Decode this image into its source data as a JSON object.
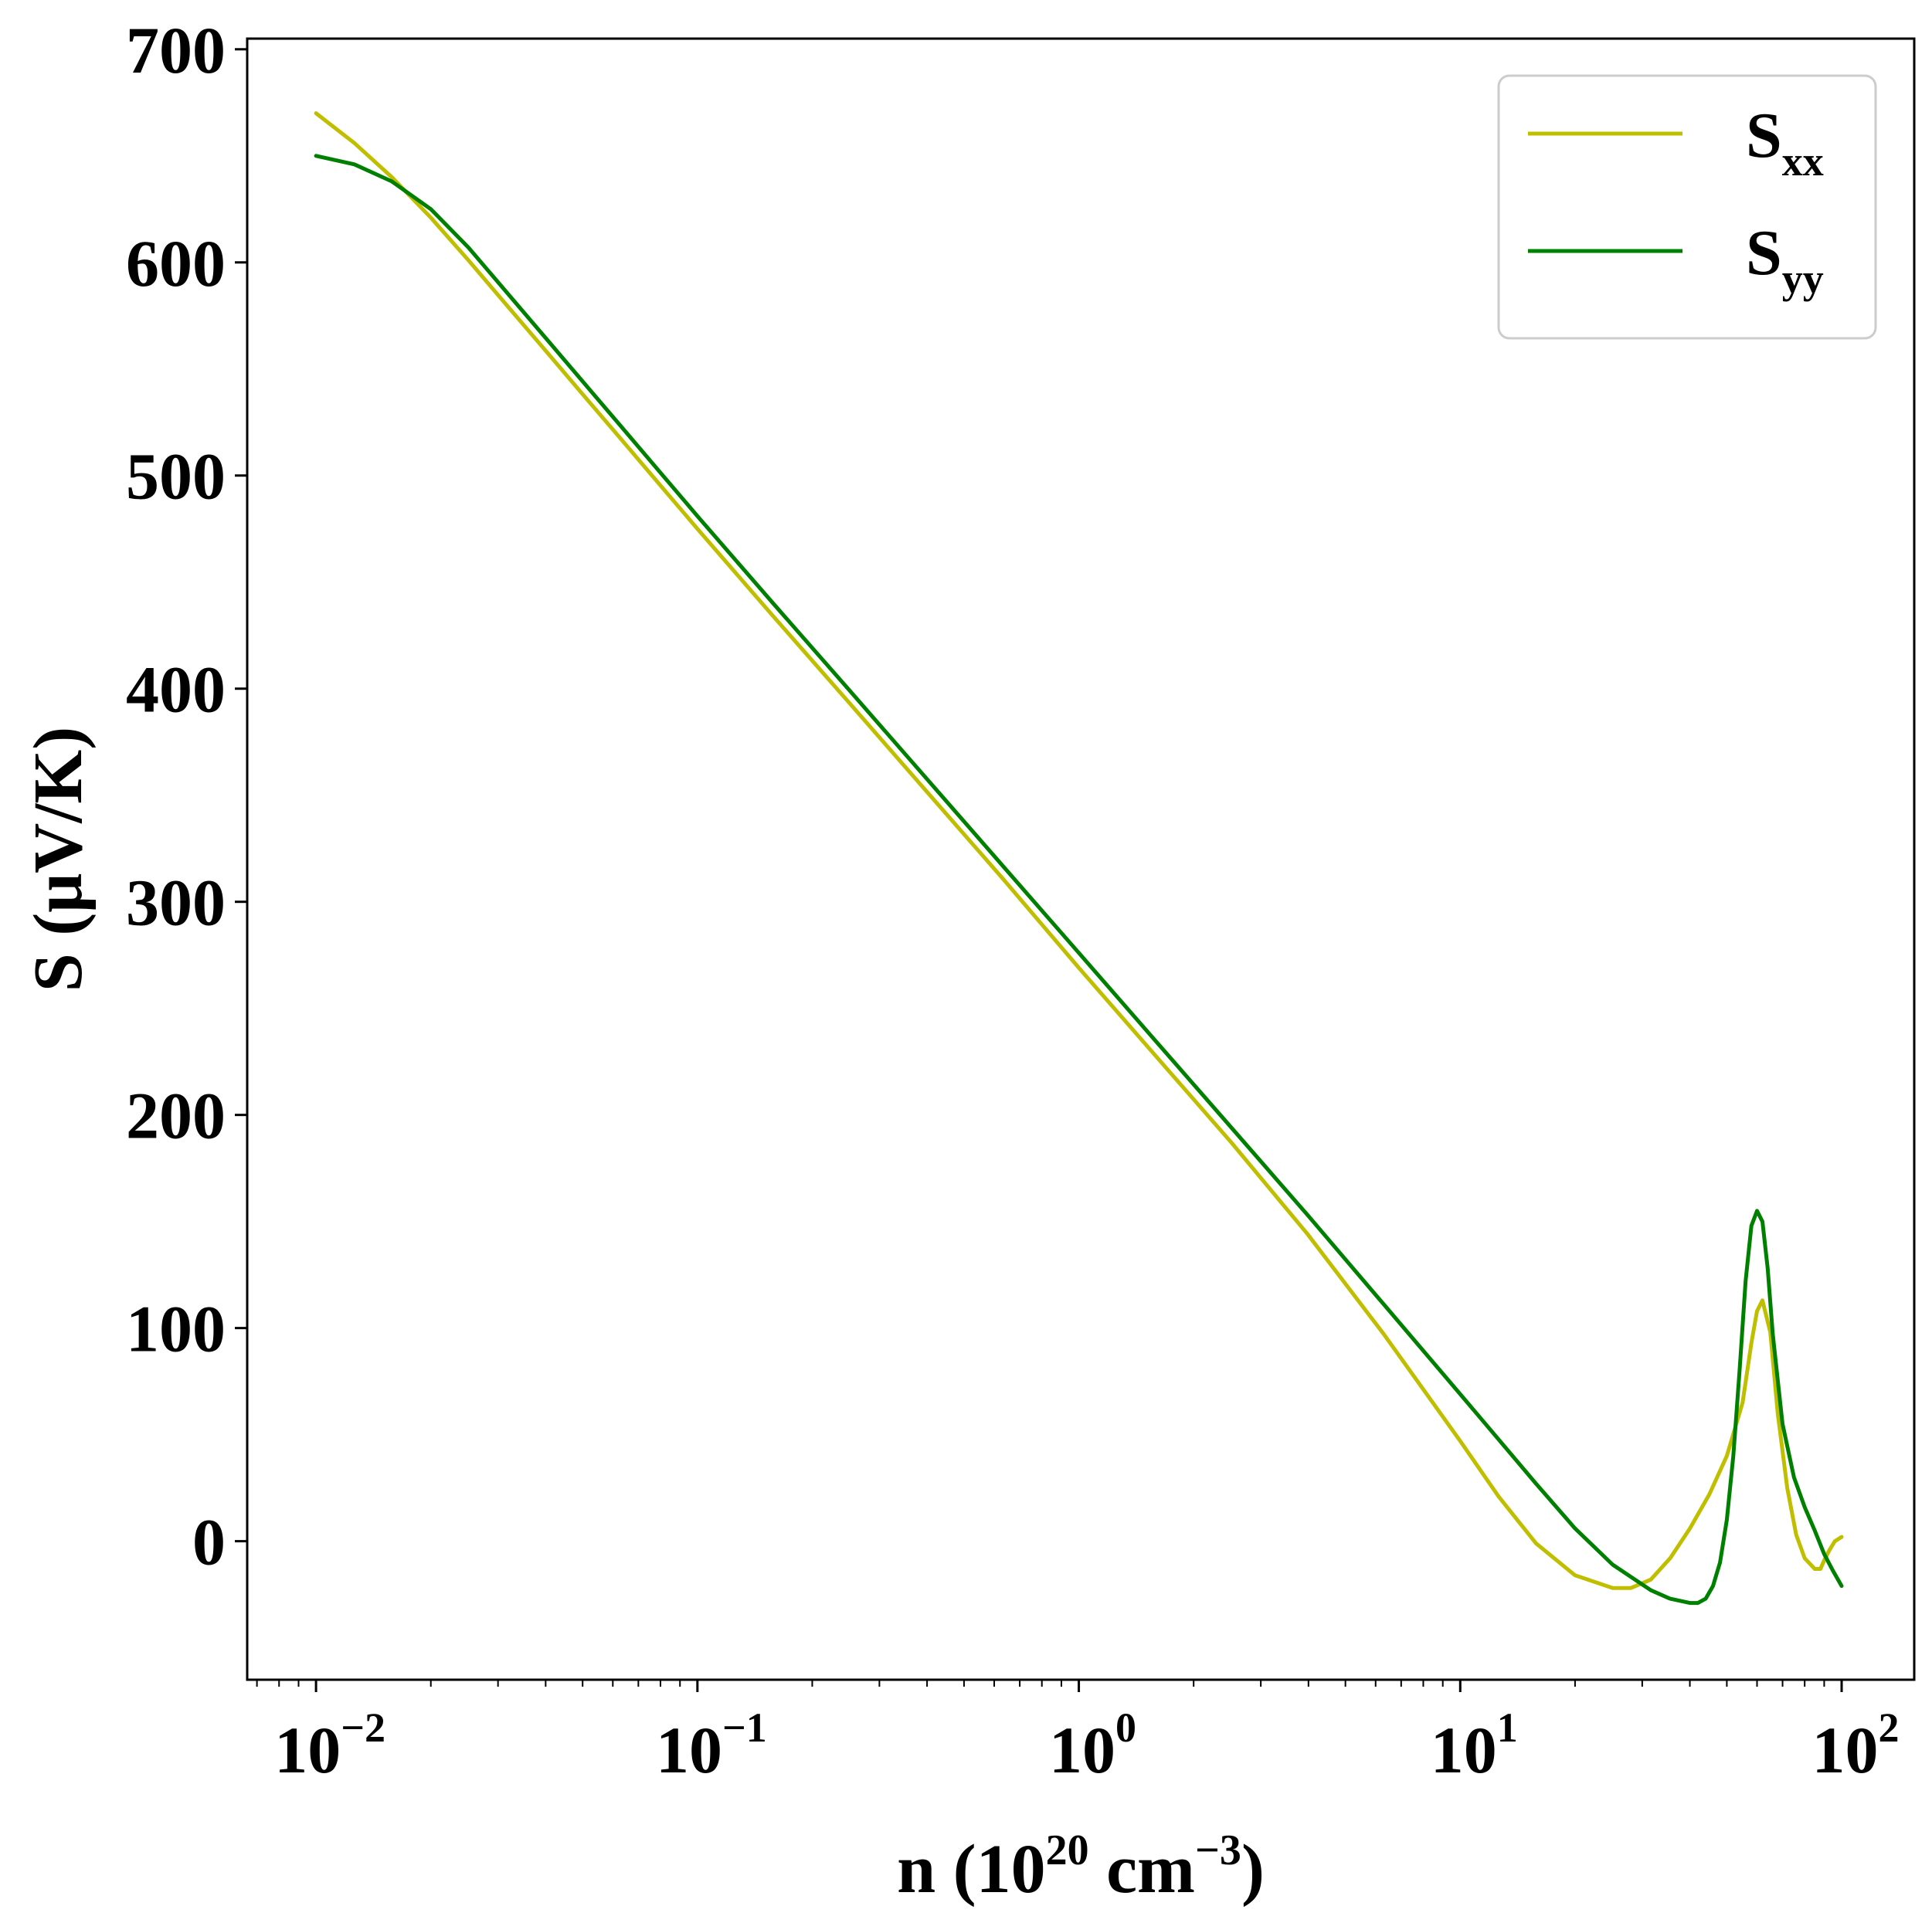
{
  "chart_data": {
    "type": "line",
    "xscale": "log",
    "xlim": [
      0.0066,
      155
    ],
    "ylim": [
      -65,
      705
    ],
    "xlabel": {
      "prefix": "n (10",
      "sup1": "20",
      "middle": " cm",
      "sup2": "−3",
      "suffix": ")"
    },
    "ylabel": "S (μV/K)",
    "grid": false,
    "legend": {
      "position": "top-right"
    },
    "x_ticks": [
      {
        "value": 0.01,
        "base": "10",
        "exp": "−2"
      },
      {
        "value": 0.1,
        "base": "10",
        "exp": "−1"
      },
      {
        "value": 1,
        "base": "10",
        "exp": "0"
      },
      {
        "value": 10,
        "base": "10",
        "exp": "1"
      },
      {
        "value": 100,
        "base": "10",
        "exp": "2"
      }
    ],
    "y_ticks": [
      {
        "value": 0,
        "label": "0"
      },
      {
        "value": 100,
        "label": "100"
      },
      {
        "value": 200,
        "label": "200"
      },
      {
        "value": 300,
        "label": "300"
      },
      {
        "value": 400,
        "label": "400"
      },
      {
        "value": 500,
        "label": "500"
      },
      {
        "value": 600,
        "label": "600"
      },
      {
        "value": 700,
        "label": "700"
      }
    ],
    "series": [
      {
        "name": "S",
        "name_sub": "xx",
        "color": "#bfbf00",
        "x": [
          0.01,
          0.0126,
          0.0158,
          0.02,
          0.0251,
          0.0316,
          0.0398,
          0.0501,
          0.0631,
          0.0794,
          0.1,
          0.158,
          0.251,
          0.398,
          0.631,
          1,
          1.585,
          2.512,
          3.981,
          6.31,
          10,
          12.6,
          15.8,
          20,
          25.1,
          28,
          31.6,
          35.5,
          40,
          45,
          50,
          55,
          58,
          60,
          62,
          65,
          68,
          72,
          76,
          80,
          85,
          88,
          90,
          93,
          96,
          100
        ],
        "y": [
          670,
          656,
          640,
          621,
          601,
          580,
          559,
          538,
          517,
          496,
          475,
          434,
          393,
          352,
          311,
          269,
          228,
          187,
          144,
          97,
          47,
          21,
          -1,
          -16,
          -22,
          -22,
          -18,
          -8,
          6,
          22,
          40,
          65,
          93,
          108,
          113,
          98,
          60,
          25,
          3,
          -8,
          -13,
          -13,
          -9,
          -4,
          0,
          2
        ]
      },
      {
        "name": "S",
        "name_sub": "yy",
        "color": "#008000",
        "x": [
          0.01,
          0.0126,
          0.0158,
          0.02,
          0.0251,
          0.0316,
          0.0398,
          0.0501,
          0.0631,
          0.0794,
          0.1,
          0.158,
          0.251,
          0.398,
          0.631,
          1,
          1.585,
          2.512,
          3.981,
          6.31,
          10,
          15.8,
          20,
          25.1,
          31.6,
          35.5,
          40,
          42,
          44,
          46,
          48,
          50,
          52,
          54,
          56,
          58,
          60,
          62,
          64,
          66,
          70,
          75,
          80,
          85,
          90,
          95,
          100
        ],
        "y": [
          650,
          646,
          638,
          625,
          607,
          586,
          565,
          544,
          523,
          502,
          481,
          440,
          399,
          358,
          317,
          276,
          235,
          194,
          153,
          111,
          69,
          27,
          6,
          -11,
          -23,
          -27,
          -29,
          -29,
          -27,
          -21,
          -10,
          10,
          40,
          80,
          122,
          148,
          155,
          150,
          128,
          97,
          55,
          30,
          16,
          5,
          -6,
          -14,
          -21
        ]
      }
    ]
  }
}
